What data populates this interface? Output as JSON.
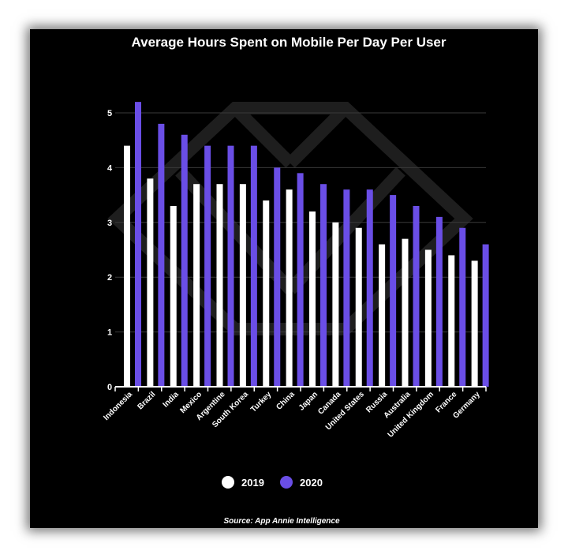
{
  "chart_data": {
    "type": "bar",
    "title": "Average Hours Spent on Mobile Per Day Per User",
    "xlabel": "",
    "ylabel": "",
    "ylim": [
      0,
      5.2
    ],
    "yticks": [
      0,
      1,
      2,
      3,
      4,
      5
    ],
    "grid": true,
    "legend_position": "bottom-center",
    "categories": [
      "Indonesia",
      "Brazil",
      "India",
      "Mexico",
      "Argentine",
      "South Korea",
      "Turkey",
      "China",
      "Japan",
      "Canada",
      "United States",
      "Russia",
      "Australia",
      "United Kingdom",
      "France",
      "Germany"
    ],
    "series": [
      {
        "name": "2019",
        "color": "#ffffff",
        "values": [
          4.4,
          3.8,
          3.3,
          3.7,
          3.7,
          3.7,
          3.4,
          3.6,
          3.2,
          3.0,
          2.9,
          2.6,
          2.7,
          2.5,
          2.4,
          2.3
        ]
      },
      {
        "name": "2020",
        "color": "#6a4ee6",
        "values": [
          5.2,
          4.8,
          4.6,
          4.4,
          4.4,
          4.4,
          4.0,
          3.9,
          3.7,
          3.6,
          3.6,
          3.5,
          3.3,
          3.1,
          2.9,
          2.6
        ]
      }
    ],
    "source": "Source: App Annie Intelligence"
  },
  "colors": {
    "background": "#000000",
    "accent_2020": "#6a4ee6",
    "bar_2019": "#ffffff",
    "grid": "#3a3a3a"
  }
}
